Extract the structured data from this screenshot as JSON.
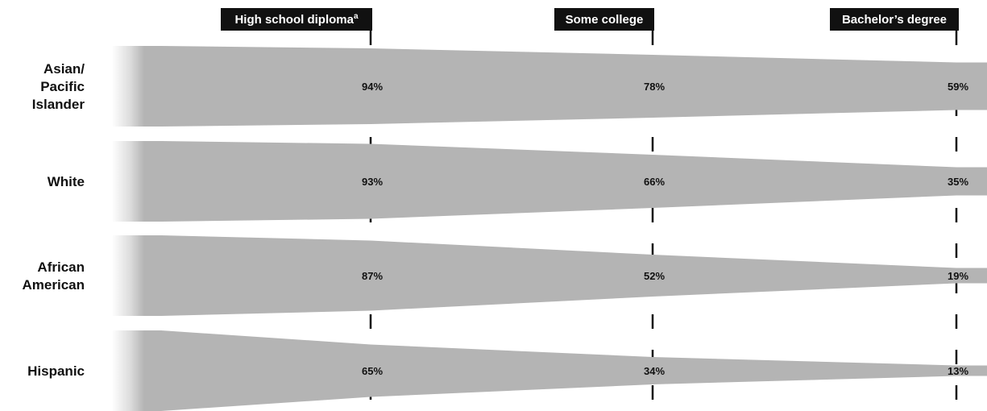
{
  "chart_data": {
    "type": "area",
    "stages": [
      {
        "label": "High school diploma",
        "sup": "a"
      },
      {
        "label": "Some college"
      },
      {
        "label": "Bachelor’s degree"
      }
    ],
    "series": [
      {
        "name": "Asian/ Pacific Islander",
        "label_lines": [
          "Asian/",
          "Pacific",
          "Islander"
        ],
        "values": [
          94,
          78,
          59
        ],
        "labels": [
          "94%",
          "78%",
          "59%"
        ]
      },
      {
        "name": "White",
        "label_lines": [
          "White"
        ],
        "values": [
          93,
          66,
          35
        ],
        "labels": [
          "93%",
          "66%",
          "35%"
        ]
      },
      {
        "name": "African American",
        "label_lines": [
          "African",
          "American"
        ],
        "values": [
          87,
          52,
          19
        ],
        "labels": [
          "87%",
          "52%",
          "19%"
        ]
      },
      {
        "name": "Hispanic",
        "label_lines": [
          "Hispanic"
        ],
        "values": [
          65,
          34,
          13
        ],
        "labels": [
          "65%",
          "34%",
          "13%"
        ]
      }
    ],
    "ylim": [
      0,
      100
    ],
    "grid": false,
    "legend": "none"
  },
  "colors": {
    "band": "#b4b4b4",
    "label_box": "#111111",
    "line": "#111111",
    "fade": "#ffffff"
  }
}
